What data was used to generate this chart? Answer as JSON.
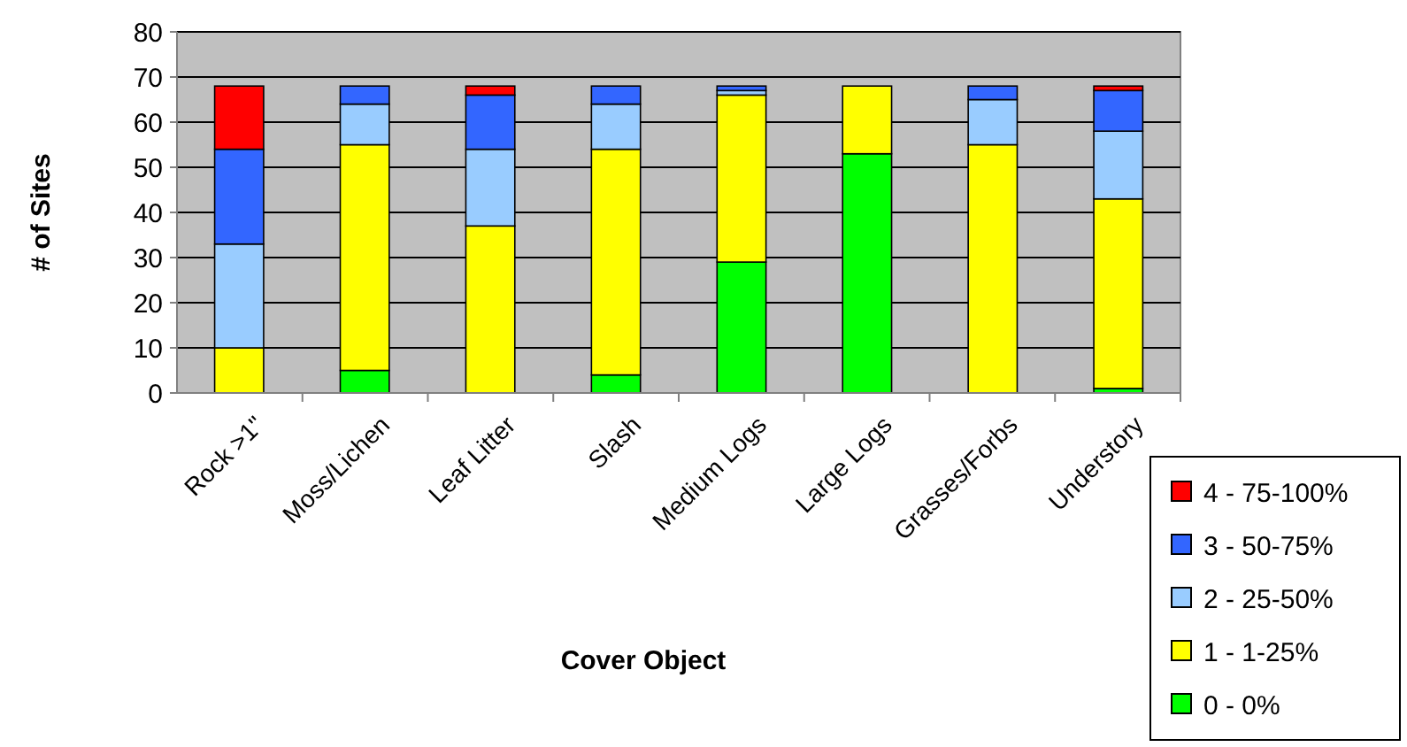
{
  "chart_data": {
    "type": "bar",
    "stacked": true,
    "xlabel": "Cover Object",
    "ylabel": "# of Sites",
    "categories": [
      "Rock >1\"",
      "Moss/Lichen",
      "Leaf Litter",
      "Slash",
      "Medium Logs",
      "Large Logs",
      "Grasses/Forbs",
      "Understory"
    ],
    "series": [
      {
        "name": "0 - 0%",
        "color": "#00ff00",
        "values": [
          0,
          5,
          0,
          4,
          29,
          53,
          0,
          1
        ]
      },
      {
        "name": "1 - 1-25%",
        "color": "#ffff00",
        "values": [
          10,
          50,
          37,
          50,
          37,
          15,
          55,
          42
        ]
      },
      {
        "name": "2 - 25-50%",
        "color": "#99ccff",
        "values": [
          23,
          9,
          17,
          10,
          1,
          0,
          10,
          15
        ]
      },
      {
        "name": "3 - 50-75%",
        "color": "#3366ff",
        "values": [
          21,
          4,
          12,
          4,
          1,
          0,
          3,
          9
        ]
      },
      {
        "name": "4 - 75-100%",
        "color": "#ff0000",
        "values": [
          14,
          0,
          2,
          0,
          0,
          0,
          0,
          1
        ]
      }
    ],
    "ylim": [
      0,
      80
    ],
    "yticks": [
      0,
      10,
      20,
      30,
      40,
      50,
      60,
      70,
      80
    ],
    "grid": "y",
    "legend": "bottom right"
  }
}
